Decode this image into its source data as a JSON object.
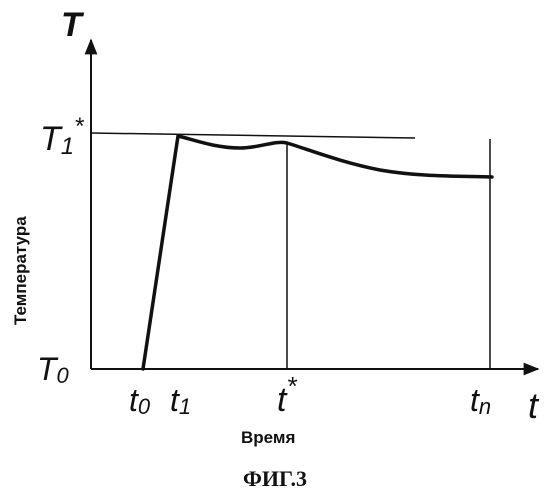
{
  "figure": {
    "caption": "ФИГ.3",
    "y_axis_title": "Температура",
    "x_axis_title": "Время",
    "y_axis_symbol": "T",
    "x_axis_symbol": "t",
    "y_labels": {
      "t1_star_main": "T",
      "t1_star_sub": "1",
      "t1_star_sup": "*",
      "t0_main": "T",
      "t0_sub": "0"
    },
    "x_labels": {
      "t0_main": "t",
      "t0_sub": "0",
      "t1_main": "t",
      "t1_sub": "1",
      "tstar_main": "t",
      "tstar_sup": "*",
      "tn_main": "t",
      "tn_sub": "n"
    }
  },
  "chart_data": {
    "type": "line",
    "description_free": true,
    "x_ticks": [
      "t0",
      "t1",
      "t*",
      "tn"
    ],
    "y_ticks": [
      "T0",
      "T1*"
    ]
  }
}
